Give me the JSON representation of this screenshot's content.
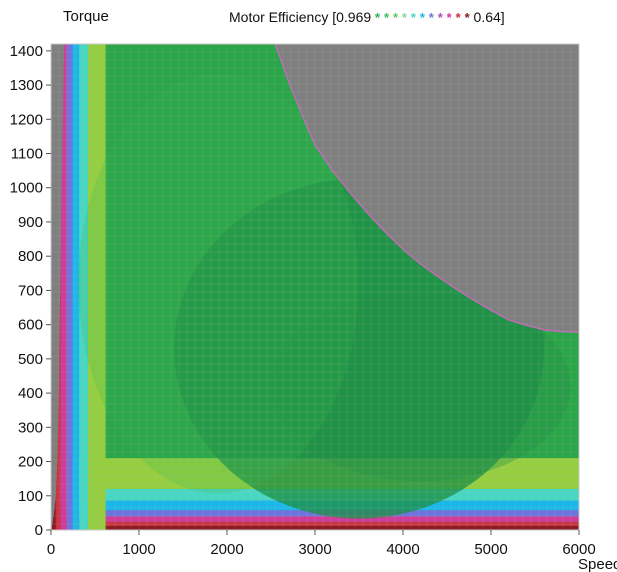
{
  "chart_data": {
    "type": "heatmap",
    "title": "Motor Efficiency [0.969**********0.64]",
    "title_parts": {
      "prefix": "Motor Efficiency [0.969",
      "stars": [
        "*",
        "*",
        "*",
        "*",
        "*",
        "*",
        "*",
        "*",
        "*",
        "*",
        "*"
      ],
      "suffix": "0.64]"
    },
    "ylabel": "Torque",
    "xlabel": "Speed",
    "xlim": [
      0,
      6000
    ],
    "ylim": [
      0,
      1420
    ],
    "x_ticks": [
      0,
      1000,
      2000,
      3000,
      4000,
      5000,
      6000
    ],
    "y_ticks": [
      0,
      100,
      200,
      300,
      400,
      500,
      600,
      700,
      800,
      900,
      1000,
      1100,
      1200,
      1300,
      1400
    ],
    "colorbar": {
      "max": 0.969,
      "min": 0.64,
      "stops": [
        "#1f8f45",
        "#2fb34a",
        "#67c64a",
        "#95cf3f",
        "#47d8c4",
        "#1ab8ea",
        "#6f73dd",
        "#d13b9a",
        "#cc2f3f",
        "#8e1b22"
      ]
    },
    "limit_boundary": {
      "speed": [
        2550,
        2700,
        2850,
        3000,
        3200,
        3400,
        3600,
        3800,
        4000,
        4200,
        4400,
        4600,
        4800,
        5000,
        5200,
        5400,
        5600,
        5800,
        6000
      ],
      "torque": [
        1420,
        1310,
        1215,
        1125,
        1050,
        985,
        925,
        870,
        820,
        777,
        740,
        705,
        672,
        642,
        614,
        598,
        585,
        580,
        578
      ]
    },
    "low_speed_boundary": {
      "torque": [
        0,
        50,
        100,
        200,
        400,
        600,
        800,
        1000,
        1200,
        1420
      ],
      "speed": [
        5,
        35,
        55,
        72,
        90,
        98,
        110,
        120,
        135,
        150
      ]
    },
    "background_colors": {
      "unavailable_region": "#7f7f7f",
      "grid": "#b5b5b5"
    }
  }
}
